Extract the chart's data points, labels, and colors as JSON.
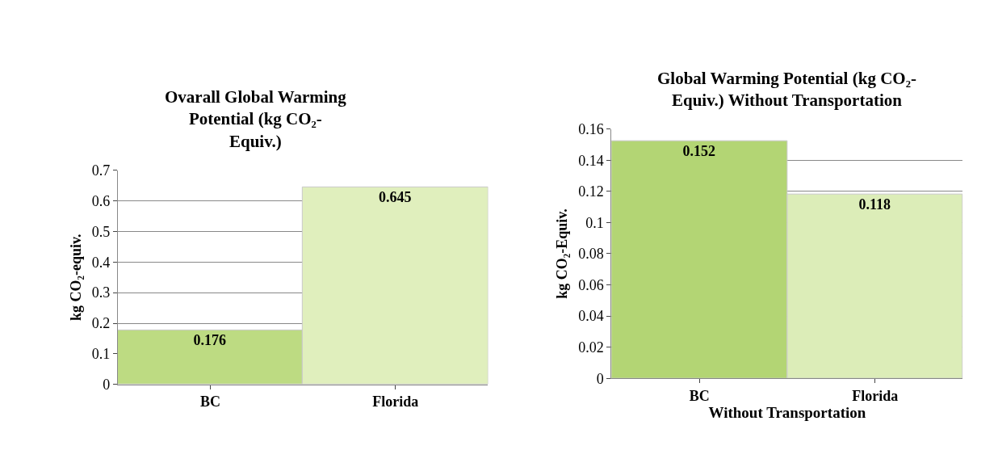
{
  "chart_data": [
    {
      "type": "bar",
      "title": "Ovarall Global Warming Potential (kg CO₂-Equiv.)",
      "ylabel": "kg CO₂-equiv.",
      "categories": [
        "BC",
        "Florida"
      ],
      "values": [
        0.176,
        0.645
      ],
      "colors": [
        "#bddb82",
        "#e0efbd"
      ],
      "ylim": [
        0,
        0.7
      ],
      "yticks": [
        0,
        0.1,
        0.2,
        0.3,
        0.4,
        0.5,
        0.6,
        0.7
      ],
      "grid": "y",
      "data_labels": true
    },
    {
      "type": "bar",
      "title": "Global Warming Potential (kg CO₂-Equiv.) Without Transportation",
      "ylabel": "kg CO₂-Equiv.",
      "xlabel": "Without Transportation",
      "categories": [
        "BC",
        "Florida"
      ],
      "values": [
        0.152,
        0.118
      ],
      "colors": [
        "#b3d574",
        "#dcedb8"
      ],
      "ylim": [
        0,
        0.16
      ],
      "yticks": [
        0,
        0.02,
        0.04,
        0.06,
        0.08,
        0.1,
        0.12,
        0.14,
        0.16
      ],
      "grid": "y",
      "data_labels": true
    }
  ]
}
